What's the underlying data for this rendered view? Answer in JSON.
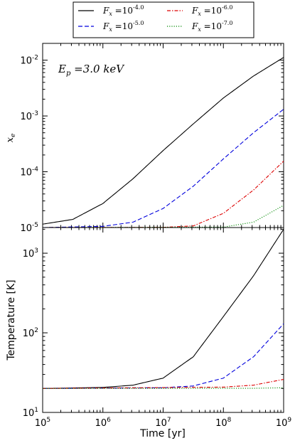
{
  "chart_data": [
    {
      "type": "line",
      "panel": "top",
      "ylabel": "x_e",
      "xscale": "log",
      "yscale": "log",
      "xlim": [
        100000,
        1000000000
      ],
      "ylim": [
        1e-05,
        0.02
      ],
      "annotation": {
        "text": "E_p =3.0 keV",
        "var": "E",
        "sub": "p",
        "rest": " =3.0 keV"
      },
      "y_tick_labels": [
        {
          "value": 1e-05,
          "base": "10",
          "exp": "-5"
        },
        {
          "value": 0.0001,
          "base": "10",
          "exp": "-4"
        },
        {
          "value": 0.001,
          "base": "10",
          "exp": "-3"
        },
        {
          "value": 0.01,
          "base": "10",
          "exp": "-2"
        }
      ],
      "series": [
        {
          "name": "F_x =10^-4.0",
          "color": "#000000",
          "dash": "solid",
          "x": [
            100000,
            316228,
            1000000,
            3162278,
            10000000,
            31622777,
            100000000,
            316227766,
            1000000000
          ],
          "y": [
            1.15e-05,
            1.4e-05,
            2.7e-05,
            7.5e-05,
            0.00024,
            0.00072,
            0.0021,
            0.0052,
            0.0112
          ]
        },
        {
          "name": "F_x =10^-5.0",
          "color": "#0000dd",
          "dash": "dashed",
          "x": [
            100000,
            1000000,
            3162278,
            10000000,
            31622777,
            100000000,
            316227766,
            1000000000
          ],
          "y": [
            1e-05,
            1.05e-05,
            1.25e-05,
            2.2e-05,
            5.5e-05,
            0.00017,
            0.0005,
            0.00132
          ]
        },
        {
          "name": "F_x =10^-6.0",
          "color": "#dd0000",
          "dash": "dashdot",
          "x": [
            100000,
            10000000,
            31622777,
            100000000,
            316227766,
            1000000000
          ],
          "y": [
            1e-05,
            1.01e-05,
            1.07e-05,
            1.8e-05,
            4.7e-05,
            0.000155
          ]
        },
        {
          "name": "F_x =10^-7.0",
          "color": "#008800",
          "dash": "dotted",
          "x": [
            100000,
            100000000,
            316227766,
            1000000000
          ],
          "y": [
            1e-05,
            1.02e-05,
            1.25e-05,
            2.5e-05
          ]
        }
      ]
    },
    {
      "type": "line",
      "panel": "bottom",
      "xlabel": "Time [yr]",
      "ylabel": "Temperature [K]",
      "xscale": "log",
      "yscale": "log",
      "xlim": [
        100000,
        1000000000
      ],
      "ylim": [
        10,
        2100
      ],
      "x_tick_labels": [
        {
          "value": 100000,
          "base": "10",
          "exp": "5"
        },
        {
          "value": 1000000,
          "base": "10",
          "exp": "6"
        },
        {
          "value": 10000000,
          "base": "10",
          "exp": "7"
        },
        {
          "value": 100000000,
          "base": "10",
          "exp": "8"
        },
        {
          "value": 1000000000,
          "base": "10",
          "exp": "9"
        }
      ],
      "y_tick_labels": [
        {
          "value": 10,
          "base": "10",
          "exp": "1"
        },
        {
          "value": 100,
          "base": "10",
          "exp": "2"
        },
        {
          "value": 1000,
          "base": "10",
          "exp": "3"
        }
      ],
      "series": [
        {
          "name": "F_x =10^-4.0",
          "color": "#000000",
          "dash": "solid",
          "x": [
            100000,
            1000000,
            3162278,
            10000000,
            31622777,
            100000000,
            316227766,
            1000000000
          ],
          "y": [
            20,
            20.6,
            22,
            27,
            50,
            160,
            520,
            2000
          ]
        },
        {
          "name": "F_x =10^-5.0",
          "color": "#0000dd",
          "dash": "dashed",
          "x": [
            100000,
            10000000,
            31622777,
            100000000,
            316227766,
            1000000000
          ],
          "y": [
            20,
            20.4,
            21.5,
            27,
            50,
            130
          ]
        },
        {
          "name": "F_x =10^-6.0",
          "color": "#dd0000",
          "dash": "dashdot",
          "x": [
            100000,
            100000000,
            316227766,
            1000000000
          ],
          "y": [
            20,
            20.8,
            22,
            26
          ]
        },
        {
          "name": "F_x =10^-7.0",
          "color": "#008800",
          "dash": "dotted",
          "x": [
            100000,
            316227766,
            1000000000
          ],
          "y": [
            20,
            20.1,
            20.4
          ]
        }
      ]
    }
  ],
  "legend": {
    "placement": "top",
    "entries": [
      {
        "var": "F",
        "sub": "x",
        "eq": " =10",
        "exp": "-4.0",
        "color": "#000000",
        "dash": "solid"
      },
      {
        "var": "F",
        "sub": "x",
        "eq": " =10",
        "exp": "-5.0",
        "color": "#0000dd",
        "dash": "dashed"
      },
      {
        "var": "F",
        "sub": "x",
        "eq": " =10",
        "exp": "-6.0",
        "color": "#dd0000",
        "dash": "dashdot"
      },
      {
        "var": "F",
        "sub": "x",
        "eq": " =10",
        "exp": "-7.0",
        "color": "#008800",
        "dash": "dotted"
      }
    ]
  }
}
